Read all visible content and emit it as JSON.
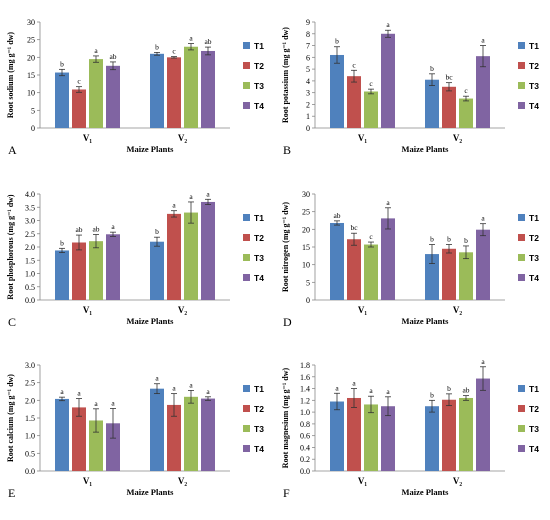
{
  "colors": {
    "T1": "#4f81bd",
    "T2": "#c0504d",
    "T3": "#9bbb59",
    "T4": "#8064a2"
  },
  "chart_data": [
    {
      "id": "A",
      "type": "bar",
      "panel_label": "A",
      "xlabel": "Maize Plants",
      "ylabel": "Root sodium (mg g⁻¹ dw)",
      "categories": [
        "V₁",
        "V₂"
      ],
      "ylim": [
        0,
        30
      ],
      "yticks": [
        0,
        5,
        10,
        15,
        20,
        25,
        30
      ],
      "tick_decimals": 0,
      "series": [
        {
          "name": "T1",
          "values": [
            15.7,
            21.0
          ],
          "errors": [
            0.9,
            0.4
          ],
          "letters": [
            "b",
            "b"
          ]
        },
        {
          "name": "T2",
          "values": [
            10.9,
            20.0
          ],
          "errors": [
            0.8,
            0.2
          ],
          "letters": [
            "c",
            "c"
          ]
        },
        {
          "name": "T3",
          "values": [
            19.5,
            23.0
          ],
          "errors": [
            0.9,
            0.9
          ],
          "letters": [
            "a",
            "a"
          ]
        },
        {
          "name": "T4",
          "values": [
            17.6,
            21.8
          ],
          "errors": [
            1.1,
            1.1
          ],
          "letters": [
            "ab",
            "ab"
          ]
        }
      ]
    },
    {
      "id": "B",
      "type": "bar",
      "panel_label": "B",
      "xlabel": "Maize Plants",
      "ylabel": "Root potassium (mg g⁻¹ dw)",
      "categories": [
        "V₁",
        "V₂"
      ],
      "ylim": [
        0,
        9
      ],
      "yticks": [
        0,
        1,
        2,
        3,
        4,
        5,
        6,
        7,
        8,
        9
      ],
      "tick_decimals": 0,
      "series": [
        {
          "name": "T1",
          "values": [
            6.2,
            4.1
          ],
          "errors": [
            0.7,
            0.5
          ],
          "letters": [
            "b",
            "b"
          ]
        },
        {
          "name": "T2",
          "values": [
            4.4,
            3.5
          ],
          "errors": [
            0.5,
            0.35
          ],
          "letters": [
            "c",
            "bc"
          ]
        },
        {
          "name": "T3",
          "values": [
            3.1,
            2.5
          ],
          "errors": [
            0.2,
            0.2
          ],
          "letters": [
            "c",
            "c"
          ]
        },
        {
          "name": "T4",
          "values": [
            8.0,
            6.1
          ],
          "errors": [
            0.3,
            0.9
          ],
          "letters": [
            "a",
            "a"
          ]
        }
      ]
    },
    {
      "id": "C",
      "type": "bar",
      "panel_label": "C",
      "xlabel": "Maize Plants",
      "ylabel": "Root phosphorous (mg g⁻¹ dw)",
      "categories": [
        "V₁",
        "V₂"
      ],
      "ylim": [
        0,
        4
      ],
      "yticks": [
        0,
        0.5,
        1,
        1.5,
        2,
        2.5,
        3,
        3.5,
        4
      ],
      "tick_decimals": 1,
      "series": [
        {
          "name": "T1",
          "values": [
            1.87,
            2.2
          ],
          "errors": [
            0.08,
            0.17
          ],
          "letters": [
            "b",
            "b"
          ]
        },
        {
          "name": "T2",
          "values": [
            2.17,
            3.25
          ],
          "errors": [
            0.28,
            0.12
          ],
          "letters": [
            "ab",
            "a"
          ]
        },
        {
          "name": "T3",
          "values": [
            2.22,
            3.3
          ],
          "errors": [
            0.25,
            0.4
          ],
          "letters": [
            "ab",
            "a"
          ]
        },
        {
          "name": "T4",
          "values": [
            2.48,
            3.7
          ],
          "errors": [
            0.08,
            0.1
          ],
          "letters": [
            "a",
            "a"
          ]
        }
      ]
    },
    {
      "id": "D",
      "type": "bar",
      "panel_label": "D",
      "xlabel": "Maize Plants",
      "ylabel": "Root nitrogen (mg g⁻¹ dw)",
      "categories": [
        "V₁",
        "V₂"
      ],
      "ylim": [
        0,
        30
      ],
      "yticks": [
        0,
        5,
        10,
        15,
        20,
        25,
        30
      ],
      "tick_decimals": 0,
      "series": [
        {
          "name": "T1",
          "values": [
            21.8,
            13.0
          ],
          "errors": [
            0.6,
            2.7
          ],
          "letters": [
            "ab",
            "b"
          ]
        },
        {
          "name": "T2",
          "values": [
            17.2,
            14.5
          ],
          "errors": [
            1.7,
            1.2
          ],
          "letters": [
            "bc",
            "b"
          ]
        },
        {
          "name": "T3",
          "values": [
            15.7,
            13.5
          ],
          "errors": [
            0.7,
            1.8
          ],
          "letters": [
            "c",
            "b"
          ]
        },
        {
          "name": "T4",
          "values": [
            23.1,
            19.9
          ],
          "errors": [
            3.0,
            1.7
          ],
          "letters": [
            "a",
            "a"
          ]
        }
      ]
    },
    {
      "id": "E",
      "type": "bar",
      "panel_label": "E",
      "xlabel": "Maize Plants",
      "ylabel": "Root calcium (mg g⁻¹ dw)",
      "categories": [
        "V₁",
        "V₂"
      ],
      "ylim": [
        0,
        3
      ],
      "yticks": [
        0,
        0.5,
        1,
        1.5,
        2,
        2.5,
        3
      ],
      "tick_decimals": 1,
      "series": [
        {
          "name": "T1",
          "values": [
            2.04,
            2.33
          ],
          "errors": [
            0.05,
            0.14
          ],
          "letters": [
            "a",
            "a"
          ]
        },
        {
          "name": "T2",
          "values": [
            1.8,
            1.87
          ],
          "errors": [
            0.25,
            0.32
          ],
          "letters": [
            "a",
            "a"
          ]
        },
        {
          "name": "T3",
          "values": [
            1.43,
            2.1
          ],
          "errors": [
            0.33,
            0.18
          ],
          "letters": [
            "a",
            "a"
          ]
        },
        {
          "name": "T4",
          "values": [
            1.35,
            2.05
          ],
          "errors": [
            0.42,
            0.05
          ],
          "letters": [
            "a",
            "a"
          ]
        }
      ]
    },
    {
      "id": "F",
      "type": "bar",
      "panel_label": "F",
      "xlabel": "Maize Plants",
      "ylabel": "Root magnesium (mg g⁻¹ dw)",
      "categories": [
        "V₁",
        "V₂"
      ],
      "ylim": [
        0,
        1.8
      ],
      "yticks": [
        0,
        0.2,
        0.4,
        0.6,
        0.8,
        1.0,
        1.2,
        1.4,
        1.6,
        1.8
      ],
      "tick_decimals": 1,
      "series": [
        {
          "name": "T1",
          "values": [
            1.18,
            1.1
          ],
          "errors": [
            0.14,
            0.1
          ],
          "letters": [
            "a",
            "b"
          ]
        },
        {
          "name": "T2",
          "values": [
            1.24,
            1.21
          ],
          "errors": [
            0.16,
            0.1
          ],
          "letters": [
            "a",
            "b"
          ]
        },
        {
          "name": "T3",
          "values": [
            1.13,
            1.24
          ],
          "errors": [
            0.14,
            0.04
          ],
          "letters": [
            "a",
            "ab"
          ]
        },
        {
          "name": "T4",
          "values": [
            1.1,
            1.57
          ],
          "errors": [
            0.16,
            0.2
          ],
          "letters": [
            "a",
            "a"
          ]
        }
      ]
    }
  ]
}
